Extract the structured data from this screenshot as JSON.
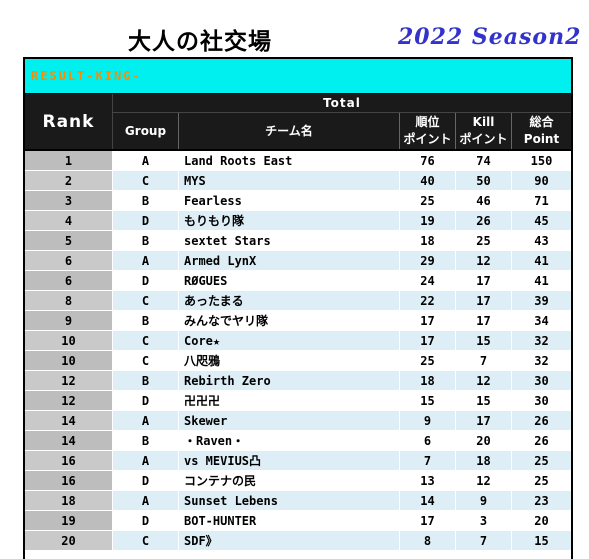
{
  "header": {
    "title": "大人の社交場",
    "season": "2022 Season2"
  },
  "banner": {
    "label": "RESULT-KING-"
  },
  "table": {
    "rank_header": "Rank",
    "total_header": "Total",
    "columns": {
      "group": "Group",
      "team": "チーム名",
      "position_line1": "順位",
      "position_line2": "ポイント",
      "kill_line1": "Kill",
      "kill_line2": "ポイント",
      "total_line1": "総合",
      "total_line2": "Point"
    },
    "rows": [
      {
        "rank": "1",
        "group": "A",
        "team": "Land Roots East",
        "position": "76",
        "kill": "74",
        "total": "150"
      },
      {
        "rank": "2",
        "group": "C",
        "team": "MYS",
        "position": "40",
        "kill": "50",
        "total": "90"
      },
      {
        "rank": "3",
        "group": "B",
        "team": "Fearless",
        "position": "25",
        "kill": "46",
        "total": "71"
      },
      {
        "rank": "4",
        "group": "D",
        "team": "もりもり隊",
        "position": "19",
        "kill": "26",
        "total": "45"
      },
      {
        "rank": "5",
        "group": "B",
        "team": "sextet Stars",
        "position": "18",
        "kill": "25",
        "total": "43"
      },
      {
        "rank": "6",
        "group": "A",
        "team": "Armed LynX",
        "position": "29",
        "kill": "12",
        "total": "41"
      },
      {
        "rank": "6",
        "group": "D",
        "team": "RØGUES",
        "position": "24",
        "kill": "17",
        "total": "41"
      },
      {
        "rank": "8",
        "group": "C",
        "team": "あったまる",
        "position": "22",
        "kill": "17",
        "total": "39"
      },
      {
        "rank": "9",
        "group": "B",
        "team": "みんなでヤリ隊",
        "position": "17",
        "kill": "17",
        "total": "34"
      },
      {
        "rank": "10",
        "group": "C",
        "team": "Core★",
        "position": "17",
        "kill": "15",
        "total": "32"
      },
      {
        "rank": "10",
        "group": "C",
        "team": "八咫鴉",
        "position": "25",
        "kill": "7",
        "total": "32"
      },
      {
        "rank": "12",
        "group": "B",
        "team": "Rebirth Zero",
        "position": "18",
        "kill": "12",
        "total": "30"
      },
      {
        "rank": "12",
        "group": "D",
        "team": "卍卍卍",
        "position": "15",
        "kill": "15",
        "total": "30"
      },
      {
        "rank": "14",
        "group": "A",
        "team": "Skewer",
        "position": "9",
        "kill": "17",
        "total": "26"
      },
      {
        "rank": "14",
        "group": "B",
        "team": "・Raven・",
        "position": "6",
        "kill": "20",
        "total": "26"
      },
      {
        "rank": "16",
        "group": "A",
        "team": "vs MEVIUS凸",
        "position": "7",
        "kill": "18",
        "total": "25"
      },
      {
        "rank": "16",
        "group": "D",
        "team": "コンテナの民",
        "position": "13",
        "kill": "12",
        "total": "25"
      },
      {
        "rank": "18",
        "group": "A",
        "team": "Sunset Lebens",
        "position": "14",
        "kill": "9",
        "total": "23"
      },
      {
        "rank": "19",
        "group": "D",
        "team": "BOT-HUNTER",
        "position": "17",
        "kill": "3",
        "total": "20"
      },
      {
        "rank": "20",
        "group": "C",
        "team": "SDF》",
        "position": "8",
        "kill": "7",
        "total": "15"
      }
    ]
  },
  "colors": {
    "banner_bg": "#00f0f0",
    "banner_text": "#ff8a00",
    "header_bg": "#1a1a1a",
    "rank_cell_bg": "#bdbdbd",
    "alt_row_bg": "#deeef6",
    "season_text": "#3333cc"
  }
}
